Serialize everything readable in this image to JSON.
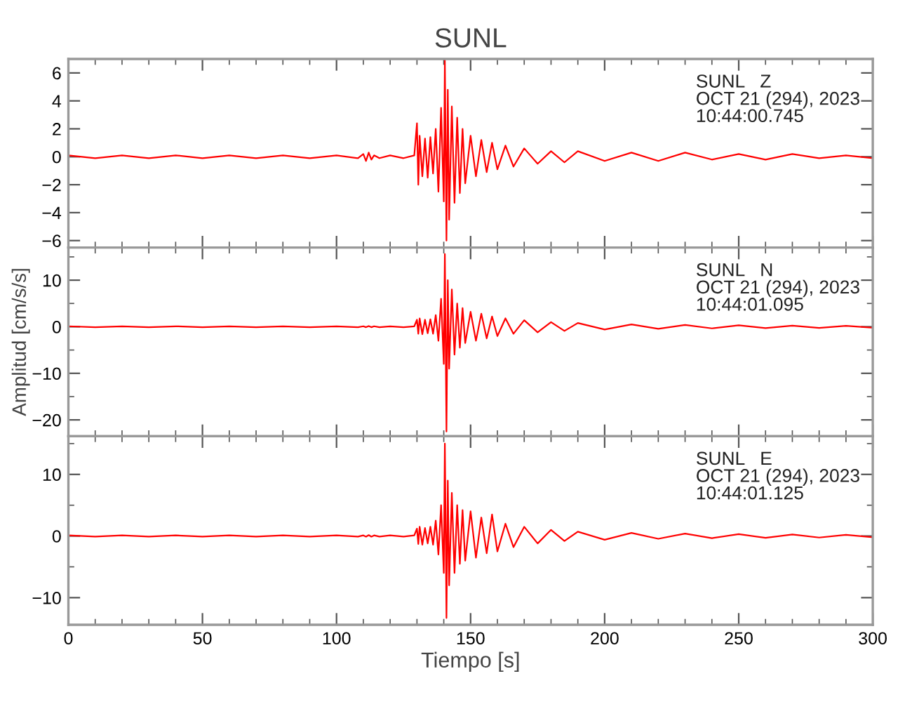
{
  "chart_data": [
    {
      "type": "line",
      "title": "SUNL",
      "annotations": [
        "SUNL   Z\nOCT 21 (294), 2023\n10:44:00.745"
      ],
      "xlim": [
        0,
        300
      ],
      "ylim": [
        -6.5,
        7
      ],
      "tick_labels": "y",
      "xticks": [
        0,
        {
          "value": 10,
          "label": null
        },
        {
          "value": 20,
          "label": null
        },
        {
          "value": 30,
          "label": null
        },
        {
          "value": 40,
          "label": null
        },
        50,
        {
          "value": 60,
          "label": null
        },
        {
          "value": 70,
          "label": null
        },
        {
          "value": 80,
          "label": null
        },
        {
          "value": 90,
          "label": null
        },
        100,
        {
          "value": 110,
          "label": null
        },
        {
          "value": 120,
          "label": null
        },
        {
          "value": 130,
          "label": null
        },
        {
          "value": 140,
          "label": null
        },
        150,
        {
          "value": 160,
          "label": null
        },
        {
          "value": 170,
          "label": null
        },
        {
          "value": 180,
          "label": null
        },
        {
          "value": 190,
          "label": null
        },
        200,
        {
          "value": 210,
          "label": null
        },
        {
          "value": 220,
          "label": null
        },
        {
          "value": 230,
          "label": null
        },
        {
          "value": 240,
          "label": null
        },
        250,
        {
          "value": 260,
          "label": null
        },
        {
          "value": 270,
          "label": null
        },
        {
          "value": 280,
          "label": null
        },
        {
          "value": 290,
          "label": null
        },
        300
      ],
      "yticks": [
        {
          "value": -6,
          "label": "−6"
        },
        {
          "value": -4,
          "label": "−4"
        },
        {
          "value": -2,
          "label": "−2"
        },
        0,
        2,
        4,
        6
      ],
      "series": [
        {
          "color": "#ff0000",
          "x": [
            0,
            10,
            20,
            30,
            40,
            50,
            60,
            70,
            80,
            90,
            100,
            108,
            110,
            111,
            112,
            113,
            114,
            116,
            120,
            125,
            129,
            130,
            130.5,
            131,
            132,
            133,
            134,
            135,
            136,
            137,
            138,
            139,
            140,
            140.4,
            141,
            141.5,
            142,
            143,
            144,
            145,
            146,
            147,
            148,
            150,
            152,
            154,
            156,
            158,
            160,
            163,
            166,
            170,
            175,
            180,
            185,
            190,
            200,
            210,
            220,
            230,
            240,
            250,
            260,
            270,
            280,
            290,
            300
          ],
          "values": [
            0.1,
            -0.1,
            0.1,
            -0.1,
            0.1,
            -0.1,
            0.1,
            -0.1,
            0.1,
            -0.1,
            0.1,
            -0.1,
            0.2,
            -0.3,
            0.3,
            -0.2,
            0.1,
            -0.1,
            0.1,
            -0.1,
            0.1,
            2.4,
            -2.0,
            1.5,
            -1.4,
            1.3,
            -1.5,
            1.4,
            -1.2,
            2.0,
            -2.5,
            3.5,
            -3.2,
            6.9,
            -6.0,
            4.8,
            -4.5,
            3.6,
            -3.3,
            2.8,
            -2.6,
            2.0,
            -1.9,
            1.5,
            -1.4,
            1.2,
            -1.1,
            1.0,
            -0.9,
            0.8,
            -0.7,
            0.6,
            -0.5,
            0.4,
            -0.4,
            0.4,
            -0.3,
            0.3,
            -0.3,
            0.3,
            -0.2,
            0.2,
            -0.2,
            0.2,
            -0.1,
            0.1,
            -0.1
          ]
        }
      ]
    },
    {
      "type": "line",
      "ylabel": "Amplitud [cm/s/s]",
      "annotations": [
        "SUNL   N\nOCT 21 (294), 2023\n10:44:01.095"
      ],
      "xlim": [
        0,
        300
      ],
      "ylim": [
        -23.5,
        17
      ],
      "tick_labels": "y",
      "xticks": [
        0,
        {
          "value": 10,
          "label": null
        },
        {
          "value": 20,
          "label": null
        },
        {
          "value": 30,
          "label": null
        },
        {
          "value": 40,
          "label": null
        },
        50,
        {
          "value": 60,
          "label": null
        },
        {
          "value": 70,
          "label": null
        },
        {
          "value": 80,
          "label": null
        },
        {
          "value": 90,
          "label": null
        },
        100,
        {
          "value": 110,
          "label": null
        },
        {
          "value": 120,
          "label": null
        },
        {
          "value": 130,
          "label": null
        },
        {
          "value": 140,
          "label": null
        },
        150,
        {
          "value": 160,
          "label": null
        },
        {
          "value": 170,
          "label": null
        },
        {
          "value": 180,
          "label": null
        },
        {
          "value": 190,
          "label": null
        },
        200,
        {
          "value": 210,
          "label": null
        },
        {
          "value": 220,
          "label": null
        },
        {
          "value": 230,
          "label": null
        },
        {
          "value": 240,
          "label": null
        },
        250,
        {
          "value": 260,
          "label": null
        },
        {
          "value": 270,
          "label": null
        },
        {
          "value": 280,
          "label": null
        },
        {
          "value": 290,
          "label": null
        },
        300
      ],
      "yticks": [
        {
          "value": -20,
          "label": "−20"
        },
        {
          "value": -15,
          "label": null
        },
        {
          "value": -10,
          "label": "−10"
        },
        {
          "value": -5,
          "label": null
        },
        0,
        {
          "value": 5,
          "label": null
        },
        10,
        {
          "value": 15,
          "label": null
        }
      ],
      "series": [
        {
          "color": "#ff0000",
          "x": [
            0,
            10,
            20,
            30,
            40,
            50,
            60,
            70,
            80,
            90,
            100,
            108,
            110,
            111,
            112,
            113,
            114,
            116,
            120,
            125,
            129,
            130,
            130.5,
            131,
            132,
            133,
            134,
            135,
            136,
            137,
            138,
            139,
            140,
            140.4,
            141,
            141.5,
            142,
            143,
            144,
            145,
            146,
            147,
            148,
            150,
            152,
            154,
            156,
            158,
            160,
            163,
            166,
            170,
            175,
            180,
            185,
            190,
            200,
            210,
            220,
            230,
            240,
            250,
            260,
            270,
            280,
            290,
            300
          ],
          "values": [
            0.1,
            -0.1,
            0.1,
            -0.1,
            0.1,
            -0.1,
            0.1,
            -0.1,
            0.1,
            -0.1,
            0.1,
            -0.1,
            0.1,
            -0.1,
            0.15,
            -0.1,
            0.1,
            -0.1,
            0.1,
            -0.1,
            0.1,
            1.5,
            -1.5,
            1.8,
            -1.6,
            1.5,
            -1.4,
            1.6,
            -1.5,
            2.5,
            -3,
            6,
            -8,
            15.6,
            -22.5,
            10,
            -9,
            8,
            -6,
            5,
            -4.5,
            4,
            -3.5,
            3.2,
            -3,
            2.8,
            -2.5,
            2.2,
            -2,
            1.8,
            -1.5,
            1.4,
            -1.2,
            1,
            -0.9,
            0.8,
            -0.6,
            0.5,
            -0.45,
            0.4,
            -0.35,
            0.3,
            -0.3,
            0.25,
            -0.25,
            0.2,
            -0.2
          ]
        }
      ]
    },
    {
      "type": "line",
      "xlabel": "Tiempo [s]",
      "annotations": [
        "SUNL   E\nOCT 21 (294), 2023\n10:44:01.125"
      ],
      "xlim": [
        0,
        300
      ],
      "ylim": [
        -14.4,
        16.2
      ],
      "xticks": [
        0,
        {
          "value": 10,
          "label": null
        },
        {
          "value": 20,
          "label": null
        },
        {
          "value": 30,
          "label": null
        },
        {
          "value": 40,
          "label": null
        },
        50,
        {
          "value": 60,
          "label": null
        },
        {
          "value": 70,
          "label": null
        },
        {
          "value": 80,
          "label": null
        },
        {
          "value": 90,
          "label": null
        },
        100,
        {
          "value": 110,
          "label": null
        },
        {
          "value": 120,
          "label": null
        },
        {
          "value": 130,
          "label": null
        },
        {
          "value": 140,
          "label": null
        },
        150,
        {
          "value": 160,
          "label": null
        },
        {
          "value": 170,
          "label": null
        },
        {
          "value": 180,
          "label": null
        },
        {
          "value": 190,
          "label": null
        },
        200,
        {
          "value": 210,
          "label": null
        },
        {
          "value": 220,
          "label": null
        },
        {
          "value": 230,
          "label": null
        },
        {
          "value": 240,
          "label": null
        },
        250,
        {
          "value": 260,
          "label": null
        },
        {
          "value": 270,
          "label": null
        },
        {
          "value": 280,
          "label": null
        },
        {
          "value": 290,
          "label": null
        },
        300
      ],
      "yticks": [
        {
          "value": -10,
          "label": "−10"
        },
        {
          "value": -5,
          "label": null
        },
        0,
        {
          "value": 5,
          "label": null
        },
        10,
        {
          "value": 15,
          "label": null
        }
      ],
      "series": [
        {
          "color": "#ff0000",
          "x": [
            0,
            10,
            20,
            30,
            40,
            50,
            60,
            70,
            80,
            90,
            100,
            108,
            110,
            111,
            112,
            113,
            114,
            116,
            120,
            125,
            129,
            130,
            130.5,
            131,
            132,
            133,
            134,
            135,
            136,
            137,
            138,
            139,
            140,
            140.4,
            141,
            141.5,
            142,
            143,
            144,
            145,
            146,
            147,
            148,
            150,
            152,
            154,
            156,
            158,
            160,
            163,
            166,
            170,
            175,
            180,
            185,
            190,
            200,
            210,
            220,
            230,
            240,
            250,
            260,
            270,
            280,
            290,
            300
          ],
          "values": [
            0.1,
            -0.1,
            0.1,
            -0.1,
            0.1,
            -0.1,
            0.1,
            -0.1,
            0.1,
            -0.1,
            0.1,
            -0.1,
            0.1,
            -0.1,
            0.15,
            -0.1,
            0.1,
            -0.1,
            0.1,
            -0.1,
            0.1,
            1.2,
            -1.3,
            1.5,
            -1.4,
            1.3,
            -1.2,
            1.5,
            -1.4,
            2.5,
            -3,
            5,
            -6,
            15,
            -13.3,
            9,
            -8,
            7,
            -6,
            5,
            -4.5,
            4.2,
            -4,
            4,
            -3.5,
            3,
            -2.8,
            3.5,
            -2.5,
            2,
            -1.8,
            1.5,
            -1.2,
            1,
            -0.8,
            0.7,
            -0.6,
            0.5,
            -0.45,
            0.4,
            -0.35,
            0.3,
            -0.3,
            0.25,
            -0.25,
            0.2,
            -0.2
          ]
        }
      ]
    }
  ]
}
